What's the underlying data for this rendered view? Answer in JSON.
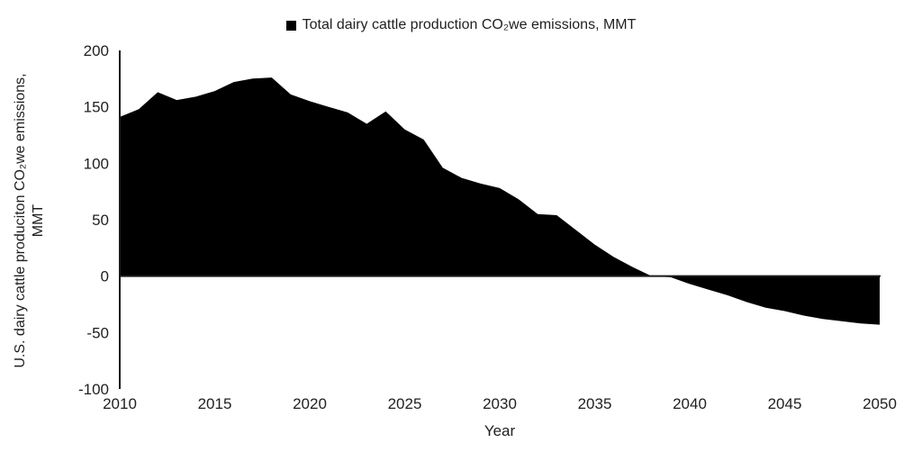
{
  "chart_data": {
    "type": "area",
    "legend": "Total dairy cattle production CO₂we emissions, MMT",
    "legend_marker": "black-square",
    "xlabel": "Year",
    "ylabel_line1": "U.S. dairy cattle produciton CO₂we emissions,",
    "ylabel_line2": "MMT",
    "x": [
      2010,
      2011,
      2012,
      2013,
      2014,
      2015,
      2016,
      2017,
      2018,
      2019,
      2020,
      2021,
      2022,
      2023,
      2024,
      2025,
      2026,
      2027,
      2028,
      2029,
      2030,
      2031,
      2032,
      2033,
      2034,
      2035,
      2036,
      2037,
      2038,
      2039,
      2040,
      2041,
      2042,
      2043,
      2044,
      2045,
      2046,
      2047,
      2048,
      2049,
      2050
    ],
    "values": [
      141,
      148,
      163,
      156,
      159,
      164,
      172,
      175,
      176,
      161,
      155,
      150,
      145,
      135,
      146,
      130,
      121,
      96,
      87,
      82,
      78,
      68,
      55,
      54,
      41,
      28,
      17,
      8,
      0,
      -1,
      -7,
      -12,
      -17,
      -23,
      -28,
      -31,
      -35,
      -38,
      -40,
      -42,
      -43
    ],
    "x_ticks": [
      2010,
      2015,
      2020,
      2025,
      2030,
      2035,
      2040,
      2045,
      2050
    ],
    "y_ticks": [
      200,
      150,
      100,
      50,
      0,
      -50,
      -100
    ],
    "xlim": [
      2010,
      2050
    ],
    "ylim": [
      -100,
      200
    ],
    "grid": false,
    "legend_position": "top-center",
    "series_color": "#000000",
    "axis_color": "#1a1a1a"
  }
}
